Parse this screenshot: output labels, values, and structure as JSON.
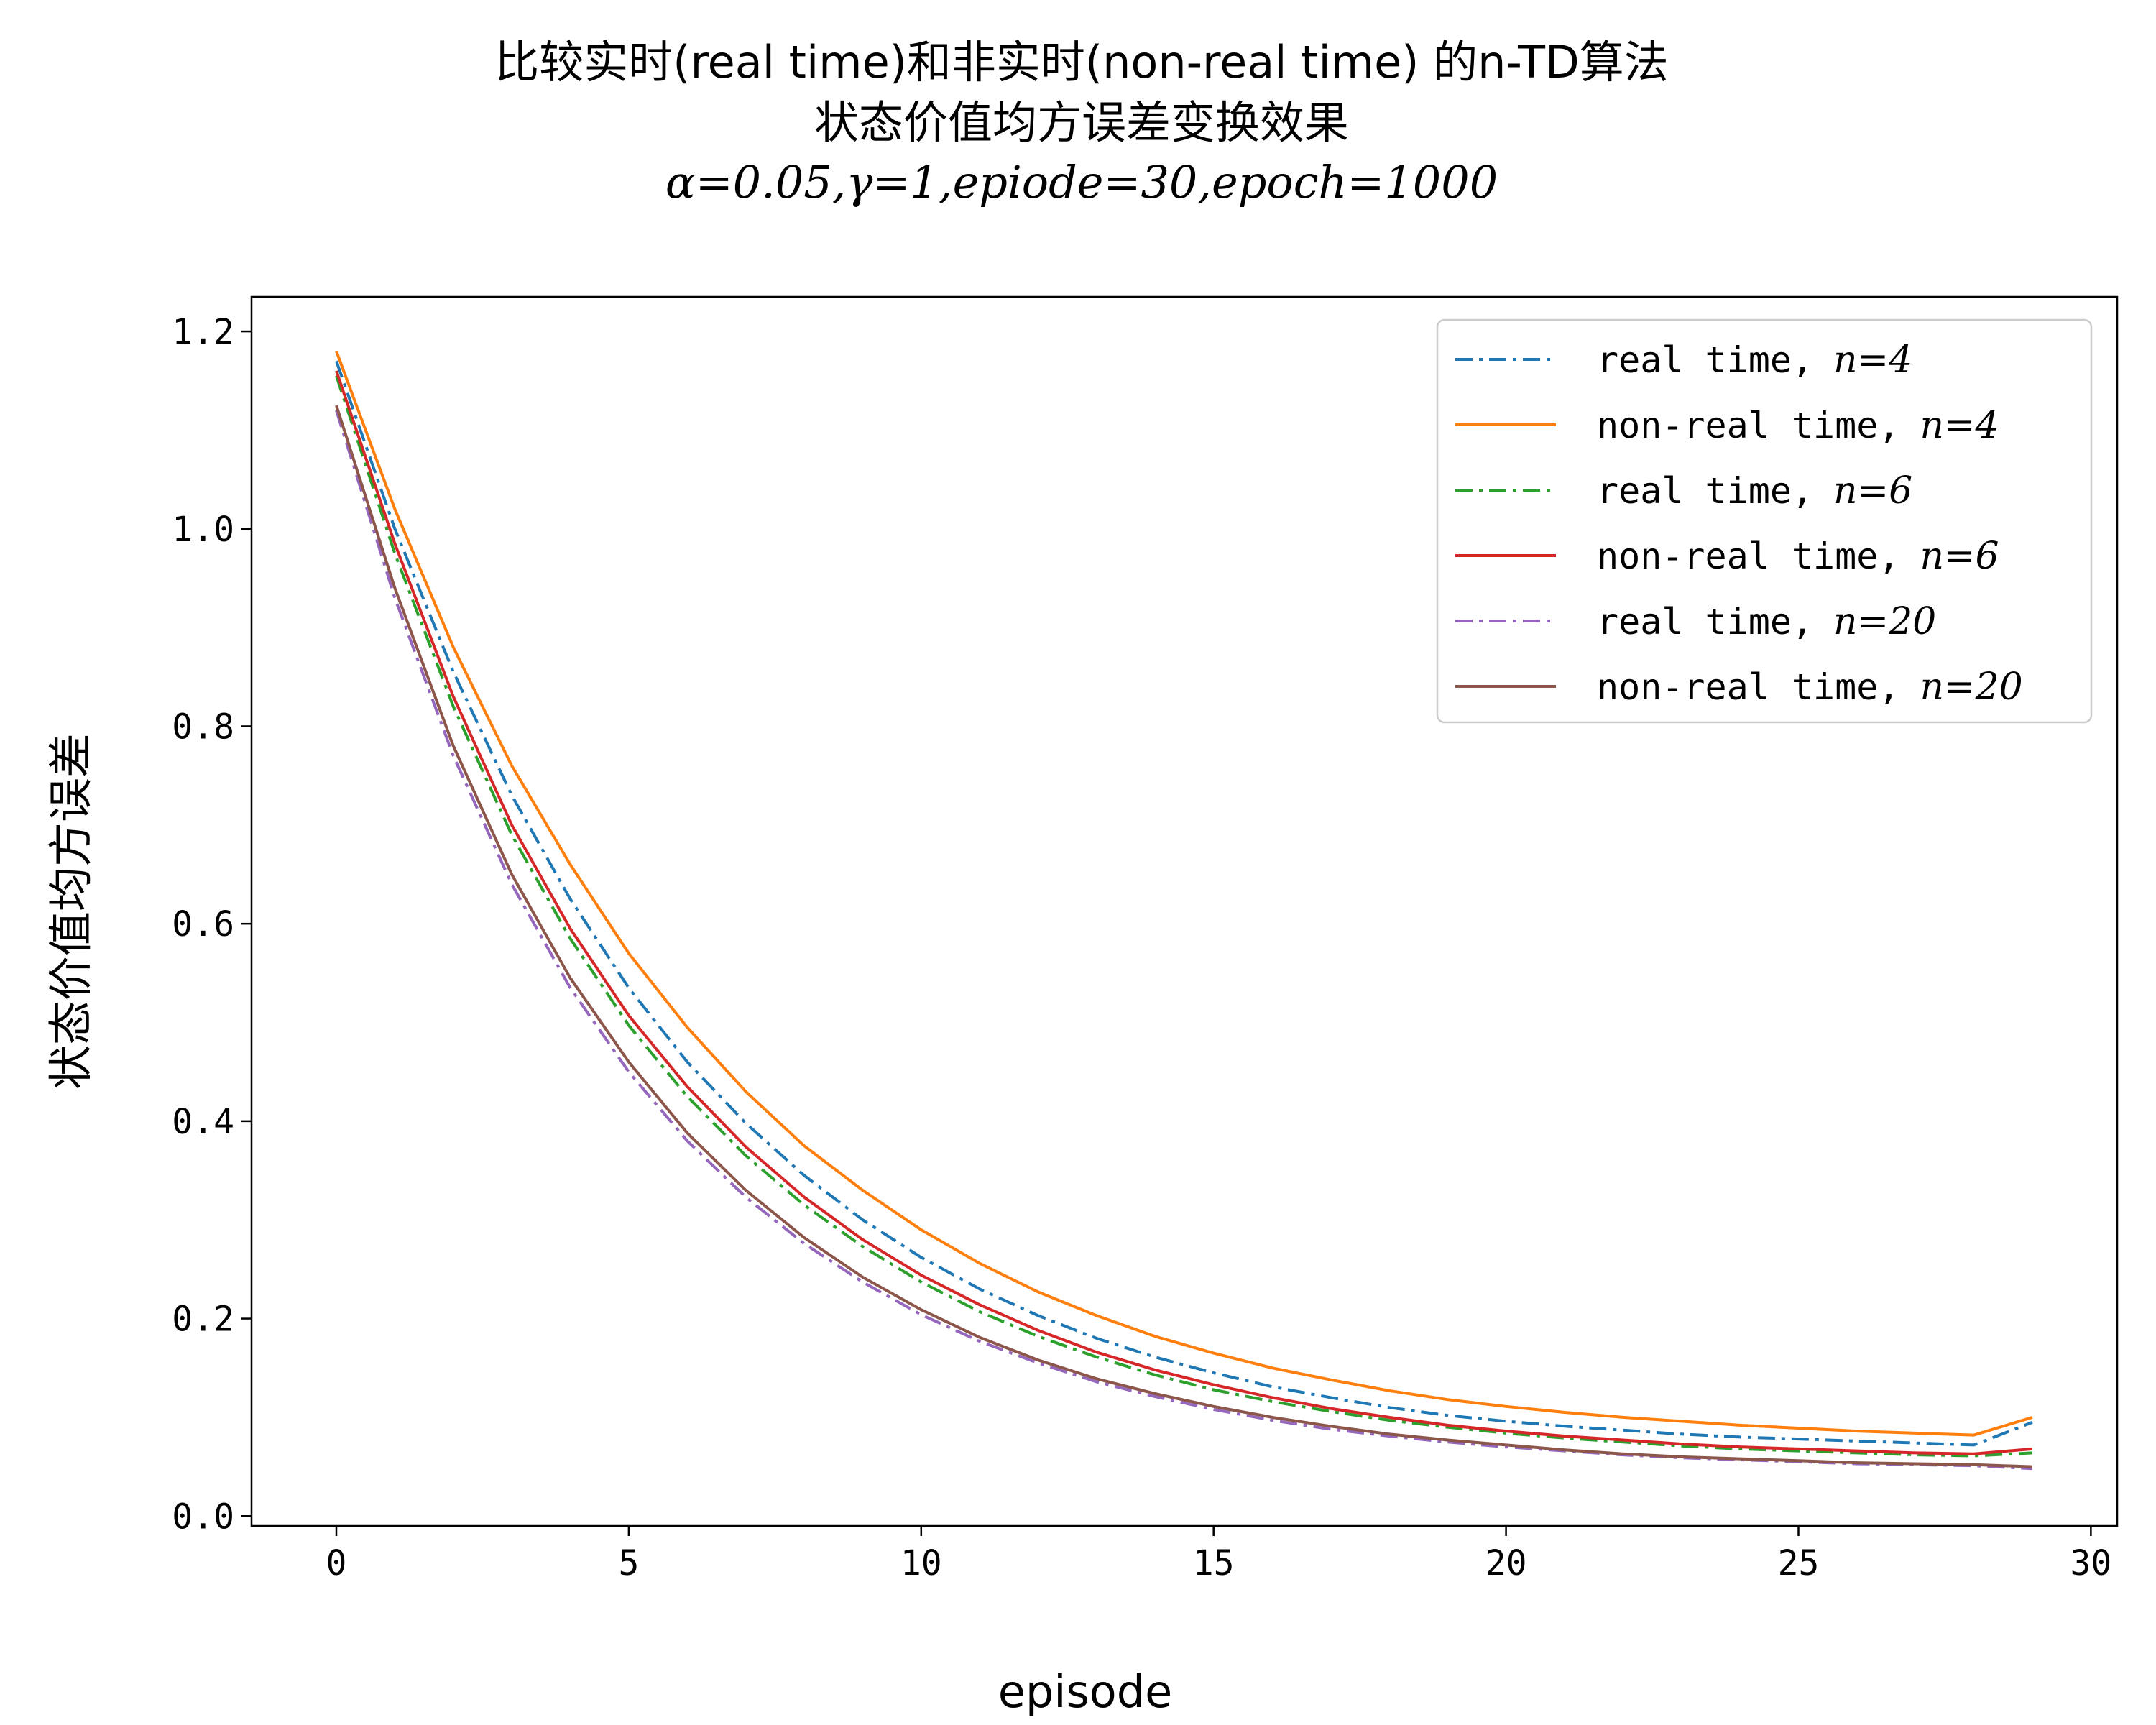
{
  "chart_data": {
    "type": "line",
    "title_line1": "比较实时(real time)和非实时(non-real time) 的n-TD算法",
    "title_line2": "状态价值均方误差变换效果",
    "subtitle": "α=0.05,γ=1,epiode=30,epoch=1000",
    "xlabel": "episode",
    "ylabel": "状态价值均方误差",
    "xlim": [
      -1.45,
      30.45
    ],
    "ylim": [
      -0.01,
      1.235
    ],
    "xticks": [
      0,
      5,
      10,
      15,
      20,
      25,
      30
    ],
    "xtick_labels": [
      "0",
      "5",
      "10",
      "15",
      "20",
      "25",
      "30"
    ],
    "yticks": [
      0.0,
      0.2,
      0.4,
      0.6,
      0.8,
      1.0,
      1.2
    ],
    "ytick_labels": [
      "0.0",
      "0.2",
      "0.4",
      "0.6",
      "0.8",
      "1.0",
      "1.2"
    ],
    "legend_position": "top-right",
    "x": [
      0,
      1,
      2,
      3,
      4,
      5,
      6,
      7,
      8,
      9,
      10,
      11,
      12,
      13,
      14,
      15,
      16,
      17,
      18,
      19,
      20,
      21,
      22,
      23,
      24,
      25,
      26,
      27,
      28,
      29
    ],
    "series": [
      {
        "name": "real time, n=4",
        "legend_prefix": "real time,",
        "legend_math": "n=4",
        "color": "#1f77b4",
        "style": "dashdot",
        "values": [
          1.17,
          1.0,
          0.855,
          0.73,
          0.625,
          0.535,
          0.46,
          0.398,
          0.345,
          0.3,
          0.262,
          0.23,
          0.203,
          0.18,
          0.161,
          0.145,
          0.131,
          0.12,
          0.11,
          0.102,
          0.096,
          0.091,
          0.087,
          0.083,
          0.08,
          0.078,
          0.076,
          0.074,
          0.072,
          0.095
        ]
      },
      {
        "name": "non-real time, n=4",
        "legend_prefix": "non-real time,",
        "legend_math": "n=4",
        "color": "#ff7f0e",
        "style": "solid",
        "values": [
          1.18,
          1.02,
          0.88,
          0.76,
          0.66,
          0.57,
          0.495,
          0.43,
          0.375,
          0.33,
          0.29,
          0.256,
          0.227,
          0.203,
          0.182,
          0.165,
          0.15,
          0.138,
          0.127,
          0.118,
          0.111,
          0.105,
          0.1,
          0.096,
          0.092,
          0.089,
          0.086,
          0.084,
          0.082,
          0.1
        ]
      },
      {
        "name": "real time, n=6",
        "legend_prefix": "real time,",
        "legend_math": "n=6",
        "color": "#2ca02c",
        "style": "dashdot",
        "values": [
          1.155,
          0.975,
          0.82,
          0.69,
          0.585,
          0.497,
          0.425,
          0.365,
          0.315,
          0.273,
          0.237,
          0.207,
          0.182,
          0.161,
          0.143,
          0.128,
          0.116,
          0.106,
          0.097,
          0.09,
          0.084,
          0.079,
          0.075,
          0.071,
          0.068,
          0.066,
          0.064,
          0.062,
          0.061,
          0.064
        ]
      },
      {
        "name": "non-real time, n=6",
        "legend_prefix": "non-real time,",
        "legend_math": "n=6",
        "color": "#d62728",
        "style": "solid",
        "values": [
          1.16,
          0.985,
          0.83,
          0.7,
          0.595,
          0.507,
          0.435,
          0.374,
          0.323,
          0.28,
          0.244,
          0.214,
          0.188,
          0.166,
          0.148,
          0.133,
          0.12,
          0.109,
          0.1,
          0.092,
          0.086,
          0.081,
          0.077,
          0.073,
          0.07,
          0.068,
          0.066,
          0.064,
          0.063,
          0.068
        ]
      },
      {
        "name": "real time, n=20",
        "legend_prefix": "real time,",
        "legend_math": "n=20",
        "color": "#9467bd",
        "style": "dashdot",
        "values": [
          1.12,
          0.93,
          0.77,
          0.64,
          0.535,
          0.45,
          0.38,
          0.323,
          0.276,
          0.237,
          0.204,
          0.177,
          0.155,
          0.136,
          0.121,
          0.108,
          0.097,
          0.088,
          0.081,
          0.075,
          0.07,
          0.066,
          0.062,
          0.059,
          0.057,
          0.055,
          0.053,
          0.052,
          0.051,
          0.048
        ]
      },
      {
        "name": "non-real time, n=20",
        "legend_prefix": "non-real time,",
        "legend_math": "n=20",
        "color": "#8c564b",
        "style": "solid",
        "values": [
          1.125,
          0.94,
          0.78,
          0.65,
          0.545,
          0.46,
          0.388,
          0.33,
          0.282,
          0.242,
          0.209,
          0.181,
          0.158,
          0.139,
          0.124,
          0.111,
          0.1,
          0.091,
          0.083,
          0.077,
          0.072,
          0.067,
          0.063,
          0.06,
          0.058,
          0.056,
          0.054,
          0.053,
          0.052,
          0.05
        ]
      }
    ]
  }
}
